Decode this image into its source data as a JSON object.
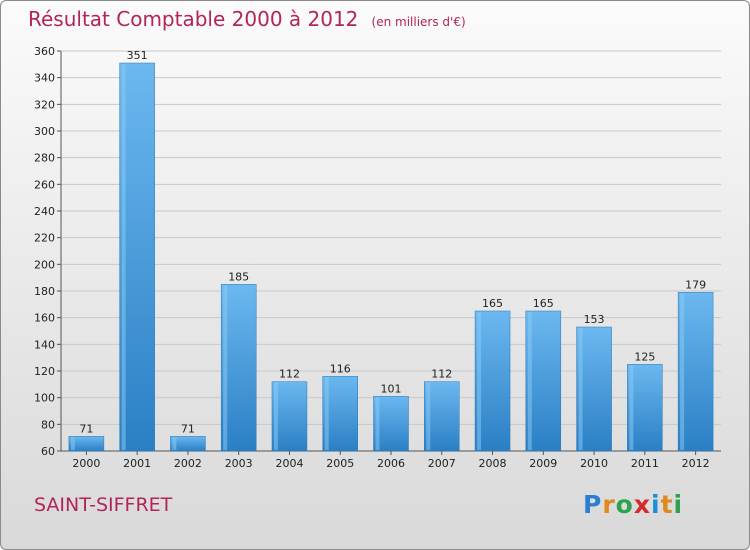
{
  "title": "Résultat Comptable 2000 à 2012",
  "unit": "(en milliers d'€)",
  "commune": "SAINT-SIFFRET",
  "logo": {
    "text": "Proxiti",
    "colors": [
      "#2a7fd4",
      "#e0891c",
      "#2aa34a",
      "#d62a2a",
      "#1c8fd6",
      "#e0891c",
      "#2aa34a"
    ]
  },
  "colors": {
    "bar": "#4a9fe0",
    "bar_light": "#6cb8f0",
    "bar_dark": "#2a7fc4",
    "accent": "#b3245a",
    "grid": "#c8c8c8"
  },
  "chart_data": {
    "type": "bar",
    "categories": [
      "2000",
      "2001",
      "2002",
      "2003",
      "2004",
      "2005",
      "2006",
      "2007",
      "2008",
      "2009",
      "2010",
      "2011",
      "2012"
    ],
    "values": [
      71,
      351,
      71,
      185,
      112,
      116,
      101,
      112,
      165,
      165,
      153,
      125,
      179
    ],
    "ylim": [
      60,
      360
    ],
    "yticks": [
      60,
      80,
      100,
      120,
      140,
      160,
      180,
      200,
      220,
      240,
      260,
      280,
      300,
      320,
      340,
      360
    ],
    "grid": true
  }
}
